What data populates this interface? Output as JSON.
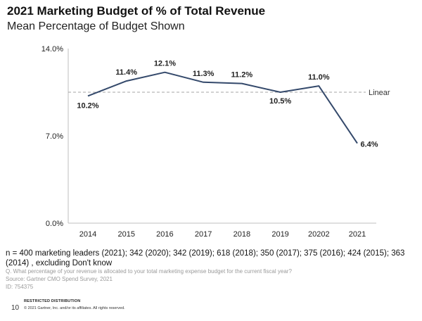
{
  "chart_data": {
    "type": "line",
    "title": "2021 Marketing Budget of % of Total Revenue",
    "subtitle": "Mean Percentage of Budget Shown",
    "categories": [
      "2014",
      "2015",
      "2016",
      "2017",
      "2018",
      "2019",
      "20202",
      "2021"
    ],
    "series": [
      {
        "values": [
          10.2,
          11.4,
          12.1,
          11.3,
          11.2,
          10.5,
          11.0,
          6.4
        ],
        "labels": [
          "10.2%",
          "11.4%",
          "12.1%",
          "11.3%",
          "11.2%",
          "10.5%",
          "11.0%",
          "6.4%"
        ],
        "color": "#34496b"
      }
    ],
    "reference_line": {
      "name": "Linear",
      "value": 10.5,
      "style": "dashed",
      "color": "#a6a6a6"
    },
    "y_ticks": [
      {
        "value": 0,
        "label": "0.0%"
      },
      {
        "value": 7,
        "label": "7.0%"
      },
      {
        "value": 14,
        "label": "14.0%"
      }
    ],
    "ylim": [
      0,
      14
    ],
    "grid": false
  },
  "footer": {
    "n_note": "n = 400 marketing leaders (2021); 342 (2020); 342 (2019); 618 (2018); 350 (2017); 375 (2016); 424 (2015); 363 (2014) , excluding Don't know",
    "question": "Q. What percentage of your revenue is allocated to your total marketing expense budget for the current fiscal year?",
    "source": "Source: Gartner CMO Spend Survey, 2021",
    "id": "ID: 754375",
    "restricted": "RESTRICTED DISTRIBUTION",
    "page_number": "10",
    "copyright": "© 2021 Gartner, Inc. and/or its affiliates. All rights reserved."
  }
}
